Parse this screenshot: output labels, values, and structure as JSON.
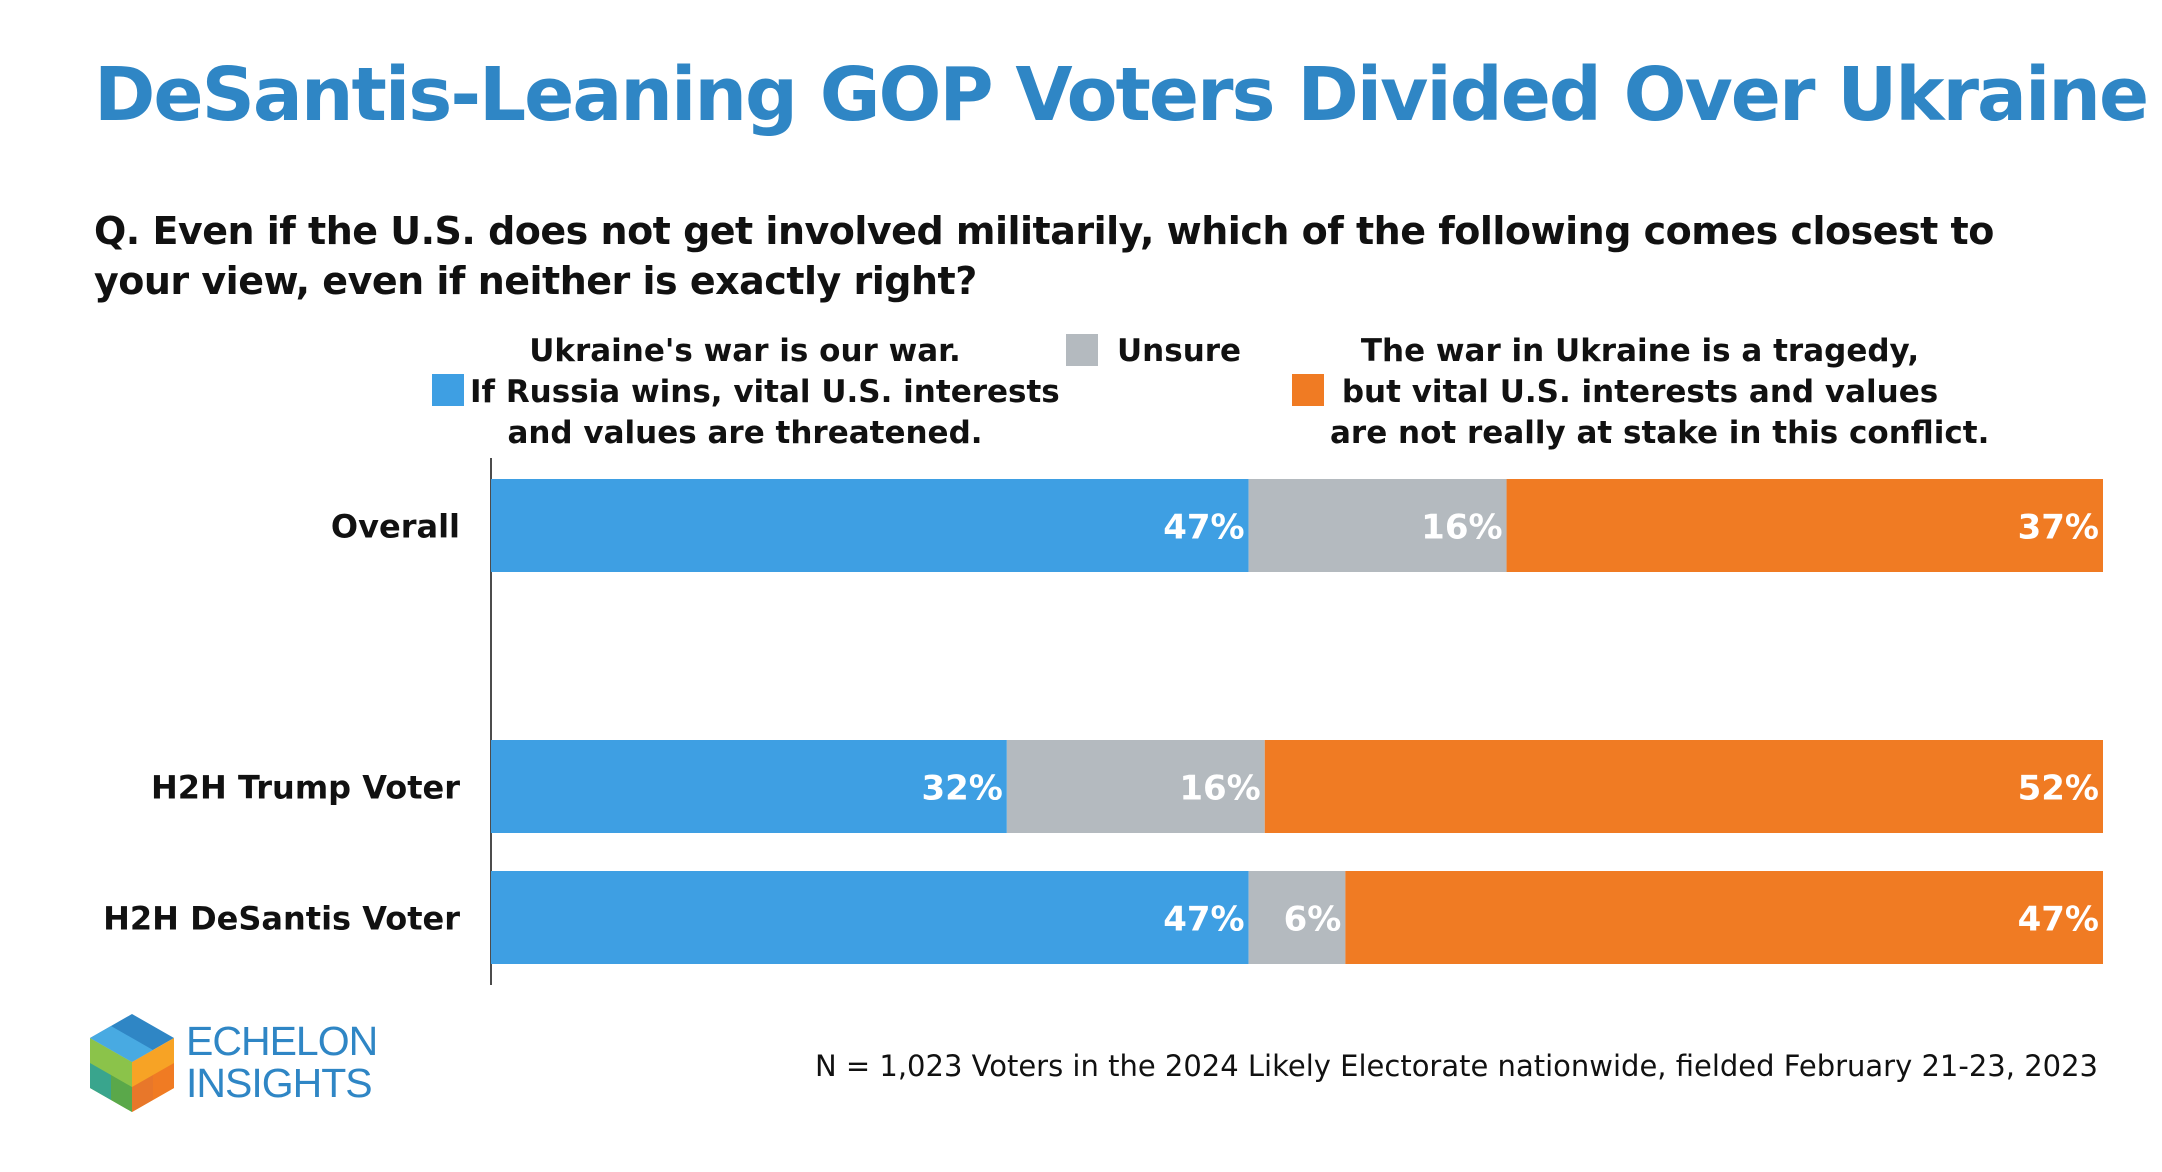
{
  "title": "DeSantis-Leaning GOP Voters Divided Over Ukraine",
  "question": "Q. Even if the U.S. does not get involved militarily, which of the following comes closest to your view, even if neither is exactly right?",
  "legend": {
    "war": [
      "Ukraine's war is our war.",
      "If Russia wins, vital U.S. interests",
      "and values are threatened."
    ],
    "unsure": "Unsure",
    "tragedy": [
      "The war in Ukraine is a tragedy,",
      "but vital U.S. interests and values",
      "are not really at stake in this conflict."
    ]
  },
  "footnote": "N = 1,023 Voters in the 2024 Likely Electorate nationwide, fielded February 21-23, 2023",
  "logo": {
    "line1": "ECHELON",
    "line2": "INSIGHTS"
  },
  "colors": {
    "war": "#3e9fe3",
    "unsure": "#b4babf",
    "tragedy": "#f07b23",
    "title": "#2f86c5"
  },
  "chart_data": {
    "type": "bar",
    "orientation": "horizontal",
    "stacked": true,
    "categories": [
      "Overall",
      "H2H Trump Voter",
      "H2H DeSantis Voter"
    ],
    "series": [
      {
        "name": "Ukraine's war is our war. If Russia wins, vital U.S. interests and values are threatened.",
        "values": [
          47,
          32,
          47
        ],
        "labels": [
          "47%",
          "32%",
          "47%"
        ]
      },
      {
        "name": "Unsure",
        "values": [
          16,
          16,
          6
        ],
        "labels": [
          "16%",
          "16%",
          "6%"
        ]
      },
      {
        "name": "The war in Ukraine is a tragedy, but vital U.S. interests and values are not really at stake in this conflict.",
        "values": [
          37,
          52,
          47
        ],
        "labels": [
          "37%",
          "52%",
          "47%"
        ]
      }
    ],
    "xlim": [
      0,
      100
    ],
    "legend_position": "top",
    "grid": false
  }
}
